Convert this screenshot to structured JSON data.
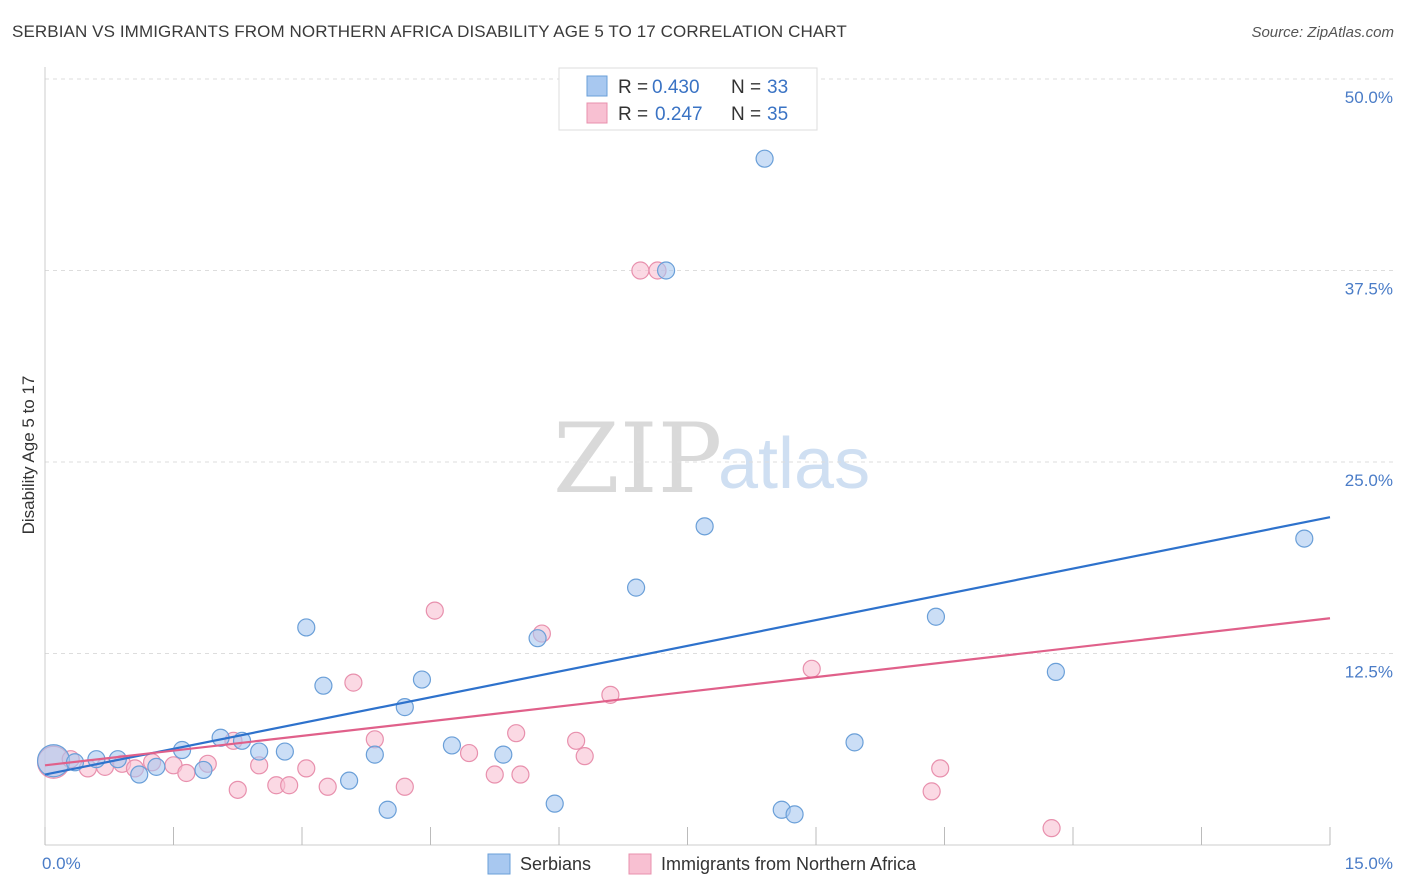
{
  "title": "SERBIAN VS IMMIGRANTS FROM NORTHERN AFRICA DISABILITY AGE 5 TO 17 CORRELATION CHART",
  "source": "Source: ZipAtlas.com",
  "watermark": {
    "zip": "ZIP",
    "atlas": "atlas"
  },
  "colors": {
    "serbians_fill": "#a8c8f0",
    "serbians_stroke": "#6a9fd8",
    "serbians_line": "#2e72cc",
    "immigrants_fill": "#f8c0d2",
    "immigrants_stroke": "#e890ad",
    "immigrants_line": "#e0608a",
    "tick_label": "#4a7cc7",
    "grid": "#dddddd"
  },
  "chart_data": {
    "type": "scatter",
    "ylabel": "Disability Age 5 to 17",
    "xlim": [
      0,
      15
    ],
    "ylim": [
      0,
      50
    ],
    "y_ticks": [
      {
        "value": 12.5,
        "label": "12.5%"
      },
      {
        "value": 25.0,
        "label": "25.0%"
      },
      {
        "value": 37.5,
        "label": "37.5%"
      },
      {
        "value": 50.0,
        "label": "50.0%"
      }
    ],
    "x_tick_labels": [
      {
        "value": 0,
        "label": "0.0%"
      },
      {
        "value": 15,
        "label": "15.0%"
      }
    ],
    "legend_stats": [
      {
        "r_label": "R =",
        "r_value": "0.430",
        "n_label": "N =",
        "n_value": "33"
      },
      {
        "r_label": "R =",
        "r_value": "0.247",
        "n_label": "N =",
        "n_value": "35"
      }
    ],
    "series": [
      {
        "name": "Serbians",
        "trend": {
          "x": [
            0,
            15
          ],
          "y": [
            4.6,
            21.4
          ]
        },
        "points": [
          {
            "x": 0.1,
            "y": 5.5,
            "big": true
          },
          {
            "x": 0.35,
            "y": 5.4
          },
          {
            "x": 0.6,
            "y": 5.6
          },
          {
            "x": 0.85,
            "y": 5.6
          },
          {
            "x": 1.1,
            "y": 4.6
          },
          {
            "x": 1.3,
            "y": 5.1
          },
          {
            "x": 1.6,
            "y": 6.2
          },
          {
            "x": 1.85,
            "y": 4.9
          },
          {
            "x": 2.05,
            "y": 7.0
          },
          {
            "x": 2.3,
            "y": 6.8
          },
          {
            "x": 2.5,
            "y": 6.1
          },
          {
            "x": 2.8,
            "y": 6.1
          },
          {
            "x": 3.05,
            "y": 14.2
          },
          {
            "x": 3.25,
            "y": 10.4
          },
          {
            "x": 3.55,
            "y": 4.2
          },
          {
            "x": 3.85,
            "y": 5.9
          },
          {
            "x": 4.0,
            "y": 2.3
          },
          {
            "x": 4.2,
            "y": 9.0
          },
          {
            "x": 4.4,
            "y": 10.8
          },
          {
            "x": 4.75,
            "y": 6.5
          },
          {
            "x": 5.35,
            "y": 5.9
          },
          {
            "x": 5.75,
            "y": 13.5
          },
          {
            "x": 5.95,
            "y": 2.7
          },
          {
            "x": 6.9,
            "y": 16.8
          },
          {
            "x": 7.25,
            "y": 37.5
          },
          {
            "x": 7.7,
            "y": 20.8
          },
          {
            "x": 8.4,
            "y": 44.8
          },
          {
            "x": 8.6,
            "y": 2.3
          },
          {
            "x": 8.75,
            "y": 2.0
          },
          {
            "x": 9.45,
            "y": 6.7
          },
          {
            "x": 10.4,
            "y": 14.9
          },
          {
            "x": 11.8,
            "y": 11.3
          },
          {
            "x": 14.7,
            "y": 20.0
          }
        ]
      },
      {
        "name": "Immigrants from Northern Africa",
        "trend": {
          "x": [
            0,
            15
          ],
          "y": [
            5.2,
            14.8
          ]
        },
        "points": [
          {
            "x": 0.1,
            "y": 5.4,
            "big": true
          },
          {
            "x": 0.3,
            "y": 5.6
          },
          {
            "x": 0.5,
            "y": 5.0
          },
          {
            "x": 0.7,
            "y": 5.1
          },
          {
            "x": 0.9,
            "y": 5.3
          },
          {
            "x": 1.05,
            "y": 5.0
          },
          {
            "x": 1.25,
            "y": 5.4
          },
          {
            "x": 1.5,
            "y": 5.2
          },
          {
            "x": 1.65,
            "y": 4.7
          },
          {
            "x": 1.9,
            "y": 5.3
          },
          {
            "x": 2.2,
            "y": 6.8
          },
          {
            "x": 2.25,
            "y": 3.6
          },
          {
            "x": 2.5,
            "y": 5.2
          },
          {
            "x": 2.7,
            "y": 3.9
          },
          {
            "x": 2.85,
            "y": 3.9
          },
          {
            "x": 3.05,
            "y": 5.0
          },
          {
            "x": 3.3,
            "y": 3.8
          },
          {
            "x": 3.6,
            "y": 10.6
          },
          {
            "x": 3.85,
            "y": 6.9
          },
          {
            "x": 4.2,
            "y": 3.8
          },
          {
            "x": 4.55,
            "y": 15.3
          },
          {
            "x": 4.95,
            "y": 6.0
          },
          {
            "x": 5.25,
            "y": 4.6
          },
          {
            "x": 5.5,
            "y": 7.3
          },
          {
            "x": 5.55,
            "y": 4.6
          },
          {
            "x": 5.8,
            "y": 13.8
          },
          {
            "x": 6.2,
            "y": 6.8
          },
          {
            "x": 6.3,
            "y": 5.8
          },
          {
            "x": 6.6,
            "y": 9.8
          },
          {
            "x": 6.95,
            "y": 37.5
          },
          {
            "x": 7.15,
            "y": 37.5
          },
          {
            "x": 8.95,
            "y": 11.5
          },
          {
            "x": 10.35,
            "y": 3.5
          },
          {
            "x": 10.45,
            "y": 5.0
          },
          {
            "x": 11.75,
            "y": 1.1
          }
        ]
      }
    ]
  }
}
